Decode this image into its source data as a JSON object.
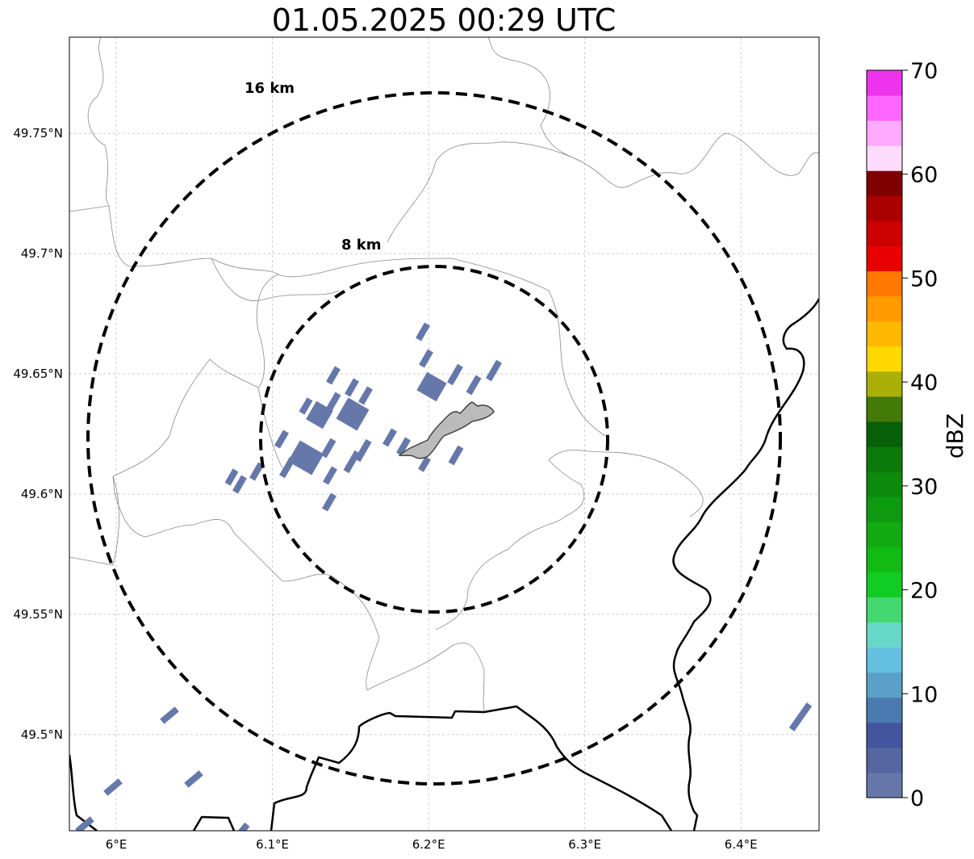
{
  "title": "01.05.2025 00:29 UTC",
  "map": {
    "lon_range": [
      5.97,
      6.45
    ],
    "lat_range": [
      49.46,
      49.79
    ],
    "gridlines": true,
    "lon_ticks": [
      {
        "value": 6.0,
        "label": "6°E"
      },
      {
        "value": 6.1,
        "label": "6.1°E"
      },
      {
        "value": 6.2,
        "label": "6.2°E"
      },
      {
        "value": 6.3,
        "label": "6.3°E"
      },
      {
        "value": 6.4,
        "label": "6.4°E"
      }
    ],
    "lat_ticks": [
      {
        "value": 49.75,
        "label": "49.75°N"
      },
      {
        "value": 49.7,
        "label": "49.7°N"
      },
      {
        "value": 49.65,
        "label": "49.65°N"
      },
      {
        "value": 49.6,
        "label": "49.6°N"
      },
      {
        "value": 49.55,
        "label": "49.55°N"
      },
      {
        "value": 49.5,
        "label": "49.5°N"
      }
    ],
    "range_rings": [
      {
        "label": "8 km"
      },
      {
        "label": "16 km"
      }
    ],
    "echo_color": "#6677aa"
  },
  "colorbar": {
    "label": "dBZ",
    "min": 0,
    "max": 70,
    "tick_labels": [
      "0",
      "10",
      "20",
      "30",
      "40",
      "50",
      "60",
      "70"
    ],
    "colors": [
      "#6677aa",
      "#5566a0",
      "#4455a0",
      "#4a7ab0",
      "#5aa0c8",
      "#66c0e0",
      "#66d8c8",
      "#44d870",
      "#11cc22",
      "#11bb11",
      "#11aa11",
      "#0e9a0e",
      "#0c8a0c",
      "#0a7a0a",
      "#086008",
      "#447a08",
      "#aab008",
      "#ffd800",
      "#ffb800",
      "#ff9a00",
      "#ff7800",
      "#e80000",
      "#cc0000",
      "#aa0000",
      "#800000",
      "#ffdcff",
      "#ffaaff",
      "#ff66ff",
      "#ee33ee"
    ]
  }
}
